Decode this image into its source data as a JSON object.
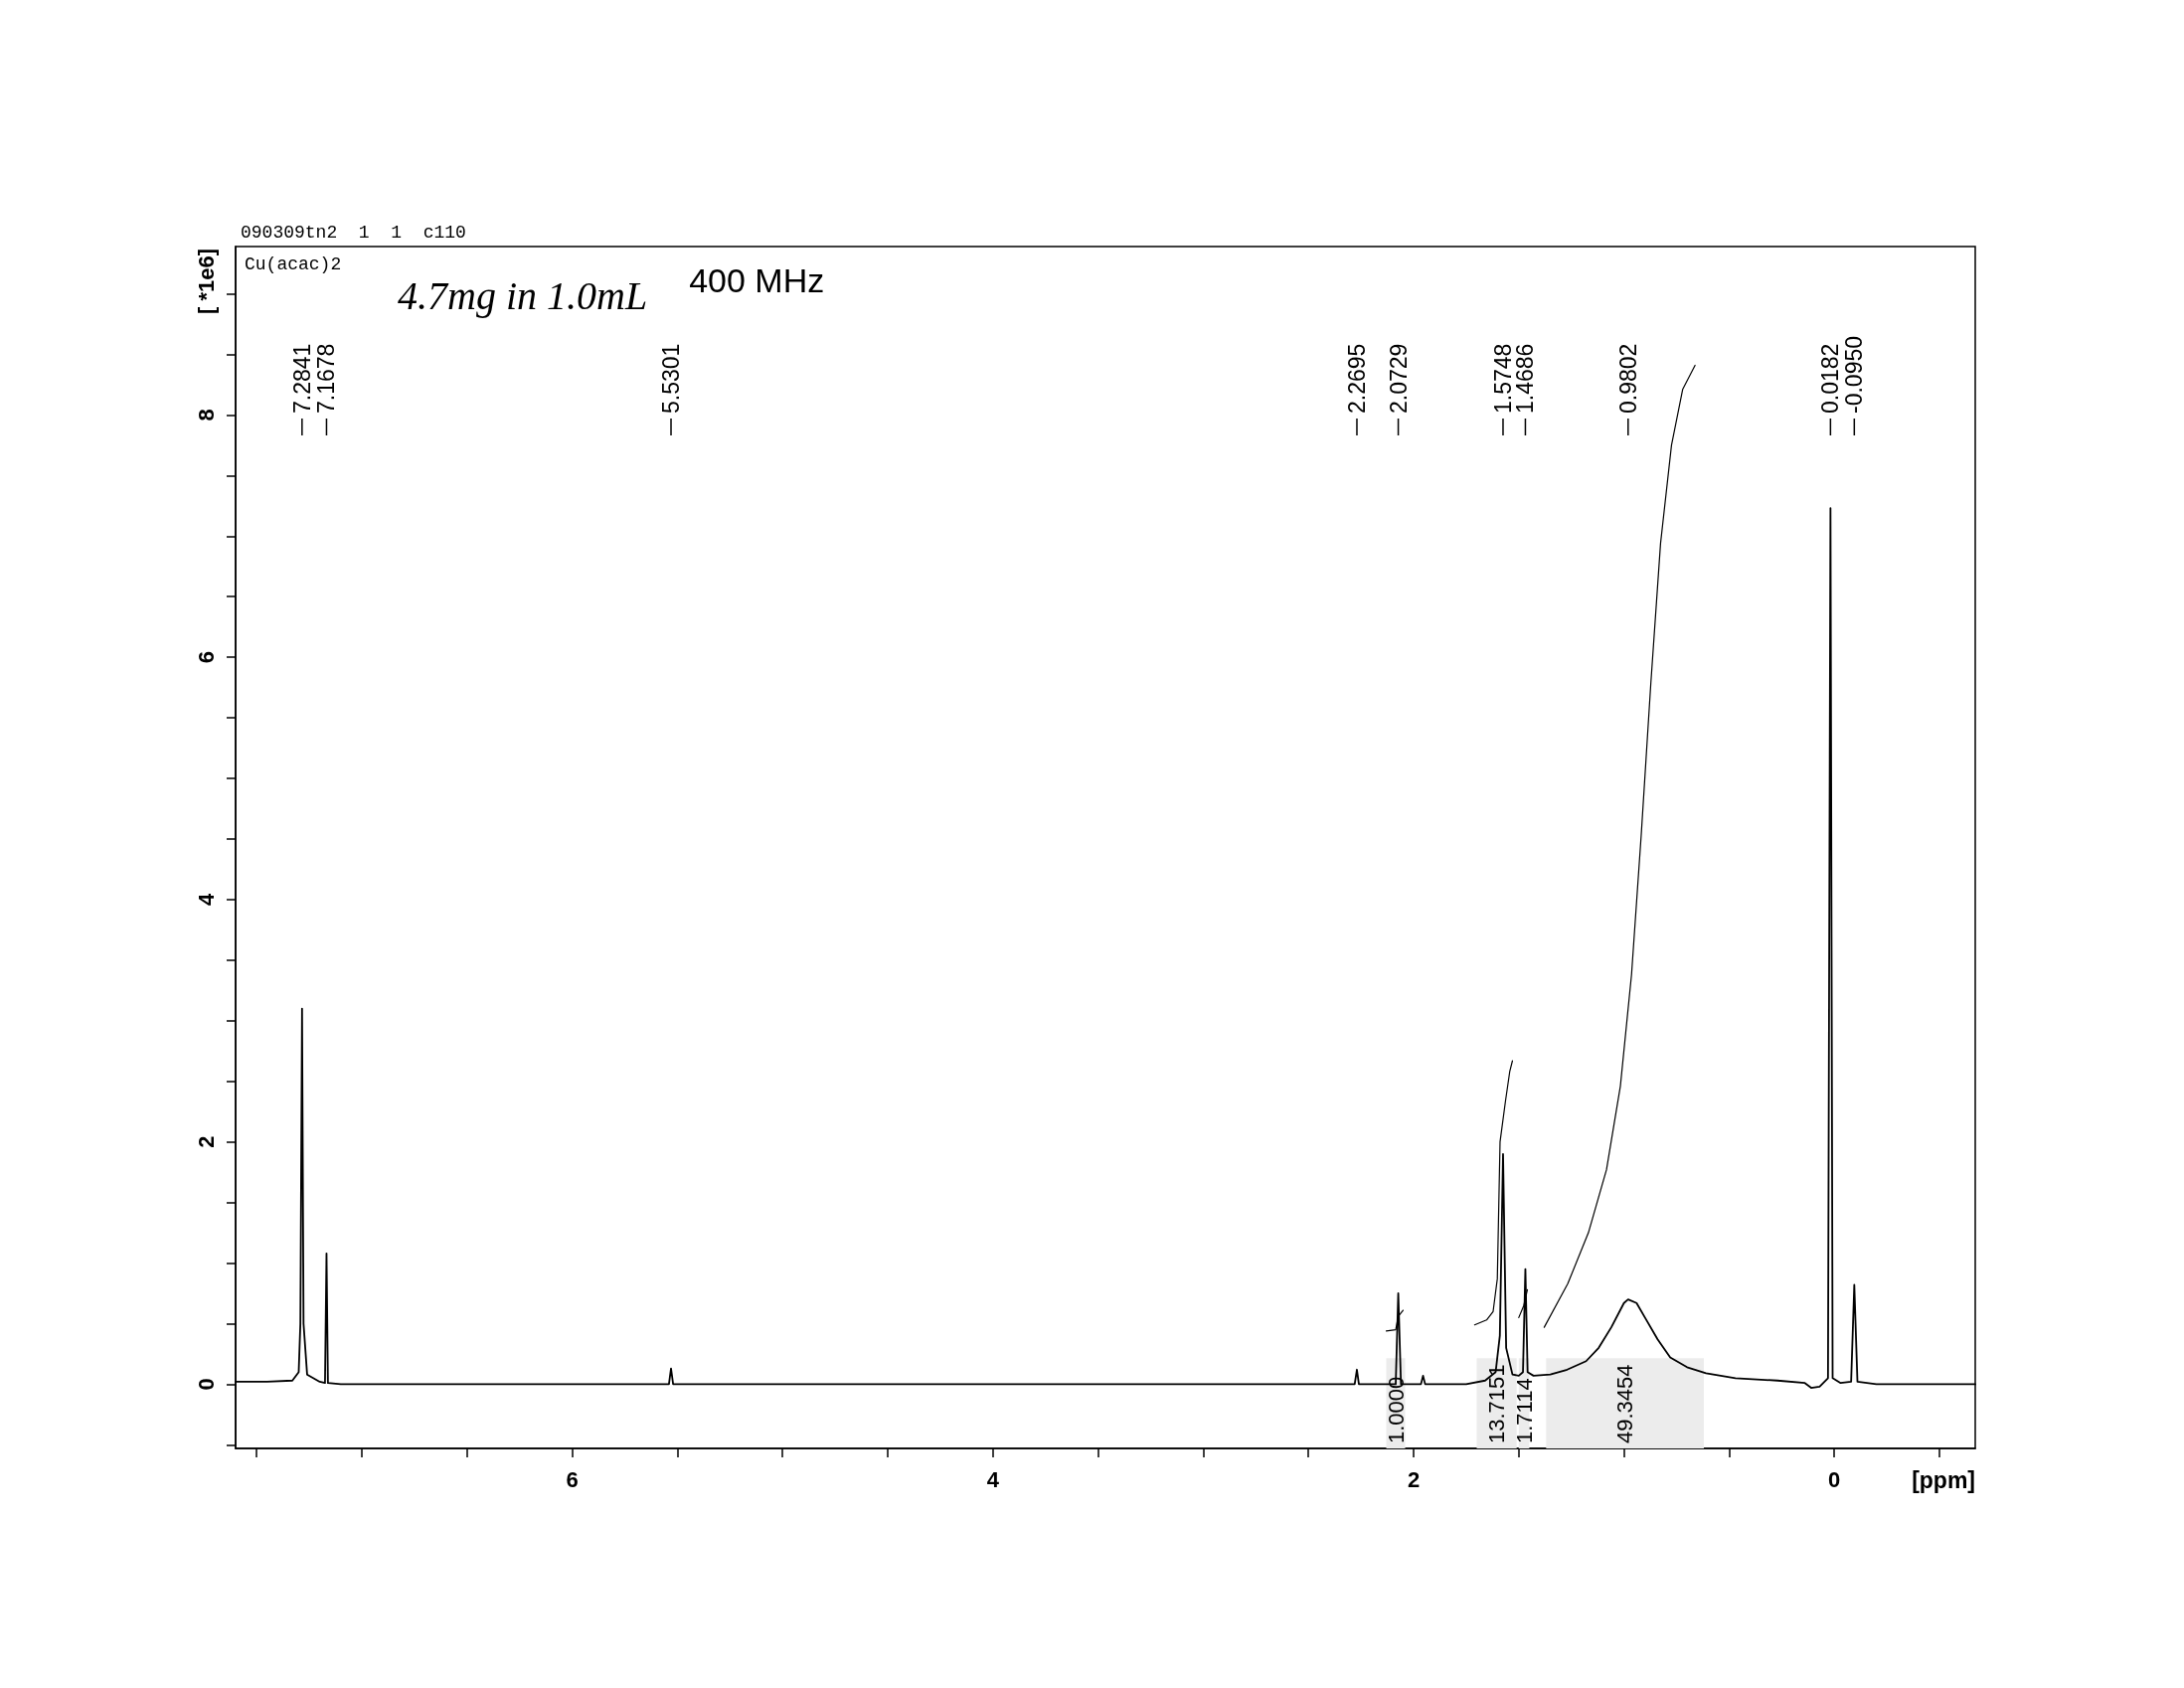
{
  "chart_data": {
    "type": "line",
    "title": "090309tn2  1  1  c110",
    "subtitle": "Cu(acac)2",
    "xlabel": "[ppm]",
    "ylabel": "[ *1e6]",
    "annotations": [
      "4.7mg in 1.0mL",
      "400 MHz",
      {
        "text": "7.2841",
        "x": 7.2841
      },
      {
        "text": "7.1678",
        "x": 7.1678
      },
      {
        "text": "5.5301",
        "x": 5.5301
      },
      {
        "text": "2.2695",
        "x": 2.2695
      },
      {
        "text": "2.0729",
        "x": 2.0729
      },
      {
        "text": "1.5748",
        "x": 1.5748
      },
      {
        "text": "1.4686",
        "x": 1.4686
      },
      {
        "text": "0.9802",
        "x": 0.9802
      },
      {
        "text": "0.0182",
        "x": 0.0182
      },
      {
        "text": "-0.0950",
        "x": -0.095
      }
    ],
    "xlim": [
      7.6,
      -0.67
    ],
    "ylim": [
      -0.53,
      9.39
    ],
    "xticks": [
      {
        "value": 7.5,
        "label": null
      },
      {
        "value": 7,
        "label": null
      },
      {
        "value": 6.5,
        "label": null
      },
      6,
      {
        "value": 5.5,
        "label": null
      },
      {
        "value": 5,
        "label": null
      },
      {
        "value": 4.5,
        "label": null
      },
      4,
      {
        "value": 3.5,
        "label": null
      },
      {
        "value": 3,
        "label": null
      },
      {
        "value": 2.5,
        "label": null
      },
      2,
      {
        "value": 1.5,
        "label": null
      },
      {
        "value": 1,
        "label": null
      },
      {
        "value": 0.5,
        "label": null
      },
      0,
      {
        "value": -0.5,
        "label": null
      }
    ],
    "yticks": [
      {
        "value": -0.5,
        "label": null
      },
      0,
      {
        "value": 0.5,
        "label": null
      },
      {
        "value": 1,
        "label": null
      },
      {
        "value": 1.5,
        "label": null
      },
      2,
      {
        "value": 2.5,
        "label": null
      },
      {
        "value": 3,
        "label": null
      },
      {
        "value": 3.5,
        "label": null
      },
      4,
      {
        "value": 4.5,
        "label": null
      },
      {
        "value": 5,
        "label": null
      },
      {
        "value": 5.5,
        "label": null
      },
      6,
      {
        "value": 6.5,
        "label": null
      },
      {
        "value": 7,
        "label": null
      },
      {
        "value": 7.5,
        "label": null
      },
      8,
      {
        "value": 8.5,
        "label": null
      },
      {
        "value": 9,
        "label": null
      }
    ],
    "series": [
      {
        "color": "#000000",
        "x": [
          7.6,
          7.45,
          7.33,
          7.3,
          7.292,
          7.2841,
          7.277,
          7.26,
          7.2,
          7.175,
          7.1678,
          7.161,
          7.1,
          6.8,
          6.4,
          6.0,
          5.54,
          5.5301,
          5.52,
          5.0,
          4.5,
          4.0,
          3.5,
          3.0,
          2.5,
          2.28,
          2.2695,
          2.26,
          2.085,
          2.0729,
          2.06,
          1.965,
          1.955,
          1.945,
          1.75,
          1.66,
          1.61,
          1.59,
          1.5748,
          1.56,
          1.53,
          1.5,
          1.48,
          1.4686,
          1.458,
          1.43,
          1.35,
          1.27,
          1.18,
          1.12,
          1.06,
          1.0,
          0.9802,
          0.94,
          0.9,
          0.84,
          0.78,
          0.7,
          0.61,
          0.47,
          0.27,
          0.14,
          0.11,
          0.07,
          0.03,
          0.0182,
          0.008,
          -0.03,
          -0.08,
          -0.095,
          -0.11,
          -0.2,
          -0.4,
          -0.67
        ],
        "values": [
          0.02,
          0.02,
          0.03,
          0.1,
          0.5,
          3.1,
          0.5,
          0.08,
          0.02,
          0.01,
          1.08,
          0.01,
          0.0,
          0.0,
          0.0,
          0.0,
          0.0,
          0.13,
          0.0,
          0.0,
          0.0,
          0.0,
          0.0,
          0.0,
          0.0,
          0.0,
          0.12,
          0.0,
          0.0,
          0.75,
          0.0,
          0.0,
          0.07,
          0.0,
          0.0,
          0.03,
          0.1,
          0.4,
          1.9,
          0.3,
          0.08,
          0.07,
          0.1,
          0.95,
          0.1,
          0.07,
          0.08,
          0.12,
          0.19,
          0.3,
          0.47,
          0.67,
          0.7,
          0.67,
          0.55,
          0.37,
          0.22,
          0.14,
          0.09,
          0.05,
          0.03,
          0.01,
          -0.03,
          -0.02,
          0.05,
          7.23,
          0.05,
          0.01,
          0.02,
          0.82,
          0.02,
          0.0,
          0.0,
          0.0
        ]
      },
      {
        "color": "#000000",
        "x": [
          2.13,
          2.085,
          2.073,
          2.05,
          1.9,
          1.71,
          1.653,
          1.622,
          1.602,
          1.589,
          1.563,
          1.543,
          1.53,
          1.515,
          1.5,
          1.476,
          1.459,
          1.44,
          1.379,
          1.267,
          1.169,
          1.083,
          1.017,
          0.964,
          0.918,
          0.872,
          0.826,
          0.774,
          0.721,
          0.662
        ],
        "values": [
          0.44,
          0.45,
          0.56,
          0.61,
          null,
          0.49,
          0.53,
          0.6,
          0.87,
          2.0,
          2.34,
          2.58,
          2.67,
          null,
          0.55,
          0.65,
          0.78,
          null,
          0.47,
          0.83,
          1.25,
          1.77,
          2.46,
          3.38,
          4.53,
          5.79,
          6.94,
          7.75,
          8.21,
          8.41
        ]
      }
    ],
    "bands": [
      {
        "axis": "x",
        "from": 2.13,
        "to": 2.04,
        "label": "1.0000",
        "color": "#ececec"
      },
      {
        "axis": "x",
        "from": 1.7,
        "to": 1.51,
        "label": "13.7151",
        "color": "#ececec"
      },
      {
        "axis": "x",
        "from": 1.5,
        "to": 1.45,
        "label": "1.7114",
        "color": "#ececec"
      },
      {
        "axis": "x",
        "from": 1.37,
        "to": 0.62,
        "label": "49.3454",
        "color": "#ececec"
      }
    ]
  }
}
